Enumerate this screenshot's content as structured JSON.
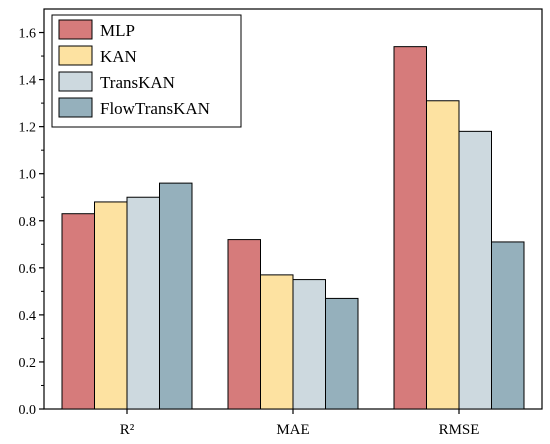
{
  "chart_data": {
    "type": "bar",
    "categories": [
      "R²",
      "MAE",
      "RMSE"
    ],
    "series": [
      {
        "name": "MLP",
        "color": "#d67b7b",
        "values": [
          0.83,
          0.72,
          1.54
        ]
      },
      {
        "name": "KAN",
        "color": "#fde2a1",
        "values": [
          0.88,
          0.57,
          1.31
        ]
      },
      {
        "name": "TransKAN",
        "color": "#cdd9df",
        "values": [
          0.9,
          0.55,
          1.18
        ]
      },
      {
        "name": "FlowTransKAN",
        "color": "#95b0bc",
        "values": [
          0.96,
          0.47,
          0.71
        ]
      }
    ],
    "title": "",
    "xlabel": "",
    "ylabel": "",
    "ylim": [
      0,
      1.7
    ],
    "yticks": [
      "0.0",
      "0.2",
      "0.4",
      "0.6",
      "0.8",
      "1.0",
      "1.2",
      "1.4",
      "1.6"
    ],
    "grid": false,
    "legend": "top-left"
  }
}
